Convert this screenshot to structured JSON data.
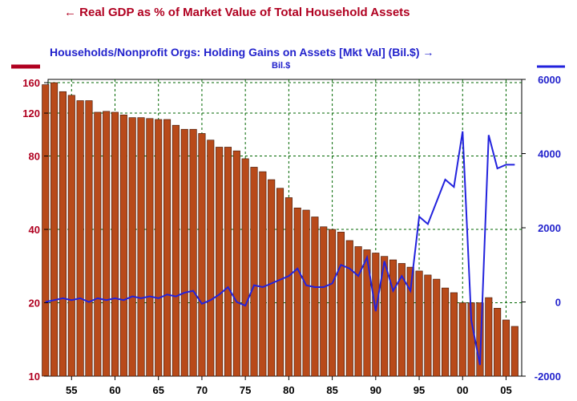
{
  "chart_data": {
    "type": "bar+line",
    "title_left": "← Real GDP as % of Market Value of Total Household Assets",
    "title_right": "Households/Nonprofit Orgs: Holding Gains on Assets [Mkt Val] (Bil.$) →",
    "right_unit": "Bil.$",
    "x_tick_labels": [
      "55",
      "60",
      "65",
      "70",
      "75",
      "80",
      "85",
      "90",
      "95",
      "00",
      "05"
    ],
    "x_tick_years": [
      1955,
      1960,
      1965,
      1970,
      1975,
      1980,
      1985,
      1990,
      1995,
      2000,
      2005
    ],
    "xlim": [
      1952.3,
      2006.8
    ],
    "left_axis": {
      "scale": "log",
      "ylim": [
        10,
        165
      ],
      "ticks": [
        10,
        20,
        40,
        80,
        120,
        160
      ]
    },
    "right_axis": {
      "scale": "linear",
      "ylim": [
        -2000,
        6000
      ],
      "ticks": [
        -2000,
        0,
        2000,
        4000,
        6000
      ]
    },
    "colors": {
      "bars": "#b84a1a",
      "bar_edge": "#3a1000",
      "line": "#2222dd",
      "left_text": "#b00020",
      "right_text": "#2222cc",
      "grid": "#006600"
    },
    "bar_series": {
      "name": "Real GDP as % of Market Value of Total Household Assets",
      "years": [
        1952,
        1953,
        1954,
        1955,
        1956,
        1957,
        1958,
        1959,
        1960,
        1961,
        1962,
        1963,
        1964,
        1965,
        1966,
        1967,
        1968,
        1969,
        1970,
        1971,
        1972,
        1973,
        1974,
        1975,
        1976,
        1977,
        1978,
        1979,
        1980,
        1981,
        1982,
        1983,
        1984,
        1985,
        1986,
        1987,
        1988,
        1989,
        1990,
        1991,
        1992,
        1993,
        1994,
        1995,
        1996,
        1997,
        1998,
        1999,
        2000,
        2001,
        2002,
        2003,
        2004,
        2005,
        2006
      ],
      "values": [
        157,
        160,
        147,
        142,
        135,
        135,
        121,
        122,
        121,
        118,
        115,
        115,
        114,
        113,
        113,
        107,
        103,
        103,
        99,
        93,
        87,
        87,
        84,
        78,
        72,
        69,
        64,
        59,
        54,
        49,
        48,
        45,
        41,
        40,
        39,
        36,
        34,
        33,
        32,
        31,
        30,
        29,
        28,
        27,
        26,
        25,
        23,
        22,
        20,
        20,
        20,
        21,
        19,
        17,
        16
      ]
    },
    "line_series": {
      "name": "Households/Nonprofit Orgs: Holding Gains on Assets [Mkt Val] (Bil.$)",
      "years": [
        1952,
        1953,
        1954,
        1955,
        1956,
        1957,
        1958,
        1959,
        1960,
        1961,
        1962,
        1963,
        1964,
        1965,
        1966,
        1967,
        1968,
        1969,
        1970,
        1971,
        1972,
        1973,
        1974,
        1975,
        1976,
        1977,
        1978,
        1979,
        1980,
        1981,
        1982,
        1983,
        1984,
        1985,
        1986,
        1987,
        1988,
        1989,
        1990,
        1991,
        1992,
        1993,
        1994,
        1995,
        1996,
        1997,
        1998,
        1999,
        2000,
        2001,
        2002,
        2003,
        2004,
        2005,
        2006
      ],
      "values": [
        0,
        50,
        100,
        50,
        100,
        0,
        100,
        50,
        100,
        50,
        150,
        100,
        150,
        100,
        200,
        150,
        250,
        300,
        -50,
        50,
        200,
        400,
        0,
        -100,
        450,
        400,
        500,
        600,
        700,
        900,
        450,
        400,
        400,
        500,
        1000,
        900,
        700,
        1200,
        -250,
        1100,
        300,
        700,
        300,
        2300,
        2100,
        2700,
        3300,
        3100,
        4600,
        -500,
        -1700,
        4500,
        3600,
        3700,
        3700
      ]
    }
  }
}
